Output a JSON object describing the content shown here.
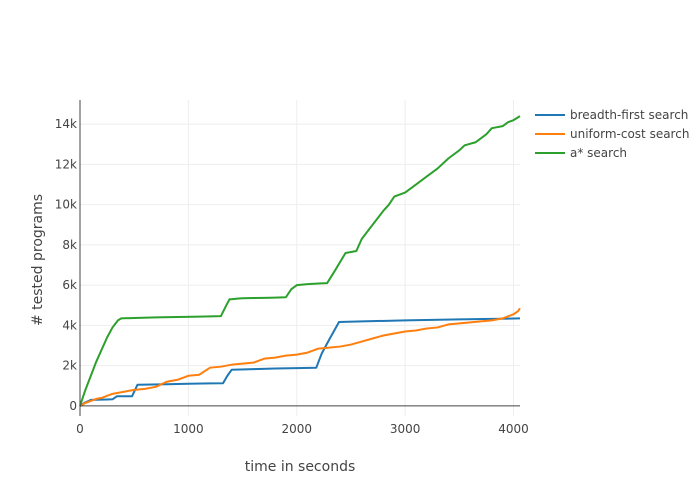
{
  "chart_data": {
    "type": "line",
    "title": "",
    "xlabel": "time in seconds",
    "ylabel": "# tested programs",
    "xlim": [
      0,
      4060
    ],
    "ylim": [
      -500,
      15200
    ],
    "x_ticks": [
      0,
      1000,
      2000,
      3000,
      4000
    ],
    "x_tick_labels": [
      "0",
      "1000",
      "2000",
      "3000",
      "4000"
    ],
    "y_ticks": [
      0,
      2000,
      4000,
      6000,
      8000,
      10000,
      12000,
      14000
    ],
    "y_tick_labels": [
      "0",
      "2k",
      "4k",
      "6k",
      "8k",
      "10k",
      "12k",
      "14k"
    ],
    "grid": true,
    "legend_position": "top-right",
    "series": [
      {
        "name": "breadth-first search",
        "color": "#1f77b4",
        "x": [
          0,
          40,
          100,
          250,
          300,
          340,
          480,
          530,
          600,
          800,
          1000,
          1200,
          1320,
          1360,
          1400,
          1600,
          1800,
          2000,
          2180,
          2230,
          2300,
          2390,
          2600,
          3000,
          3500,
          4060
        ],
        "y": [
          0,
          150,
          300,
          320,
          330,
          480,
          480,
          1050,
          1060,
          1080,
          1100,
          1120,
          1130,
          1500,
          1800,
          1830,
          1860,
          1880,
          1900,
          2600,
          3300,
          4170,
          4200,
          4250,
          4300,
          4350
        ]
      },
      {
        "name": "uniform-cost search",
        "color": "#ff7f0e",
        "x": [
          0,
          50,
          100,
          150,
          200,
          250,
          300,
          400,
          500,
          600,
          700,
          800,
          900,
          1000,
          1100,
          1200,
          1300,
          1400,
          1500,
          1600,
          1700,
          1800,
          1900,
          2000,
          2100,
          2200,
          2300,
          2400,
          2500,
          2600,
          2700,
          2800,
          2900,
          3000,
          3100,
          3200,
          3300,
          3400,
          3500,
          3600,
          3700,
          3800,
          3900,
          3950,
          4000,
          4040,
          4060
        ],
        "y": [
          0,
          150,
          250,
          350,
          400,
          500,
          600,
          700,
          800,
          850,
          950,
          1200,
          1300,
          1500,
          1550,
          1900,
          1950,
          2050,
          2100,
          2150,
          2350,
          2400,
          2500,
          2550,
          2650,
          2850,
          2900,
          2950,
          3050,
          3200,
          3350,
          3500,
          3600,
          3700,
          3750,
          3850,
          3900,
          4050,
          4100,
          4150,
          4200,
          4250,
          4350,
          4450,
          4550,
          4700,
          4850
        ]
      },
      {
        "name": "a* search",
        "color": "#2ca02c",
        "x": [
          0,
          50,
          100,
          150,
          200,
          250,
          300,
          350,
          380,
          500,
          700,
          900,
          1100,
          1300,
          1350,
          1380,
          1400,
          1450,
          1500,
          1600,
          1700,
          1800,
          1900,
          1950,
          2000,
          2100,
          2200,
          2280,
          2350,
          2450,
          2550,
          2600,
          2700,
          2800,
          2850,
          2900,
          3000,
          3100,
          3200,
          3300,
          3400,
          3500,
          3550,
          3650,
          3750,
          3800,
          3900,
          3950,
          4000,
          4060
        ],
        "y": [
          0,
          800,
          1500,
          2200,
          2800,
          3400,
          3900,
          4250,
          4350,
          4370,
          4400,
          4420,
          4440,
          4460,
          5000,
          5300,
          5300,
          5330,
          5350,
          5360,
          5370,
          5380,
          5400,
          5800,
          6000,
          6050,
          6080,
          6100,
          6700,
          7600,
          7700,
          8300,
          9000,
          9700,
          10000,
          10400,
          10600,
          11000,
          11400,
          11800,
          12300,
          12700,
          12950,
          13100,
          13500,
          13800,
          13900,
          14100,
          14200,
          14400
        ]
      }
    ]
  }
}
